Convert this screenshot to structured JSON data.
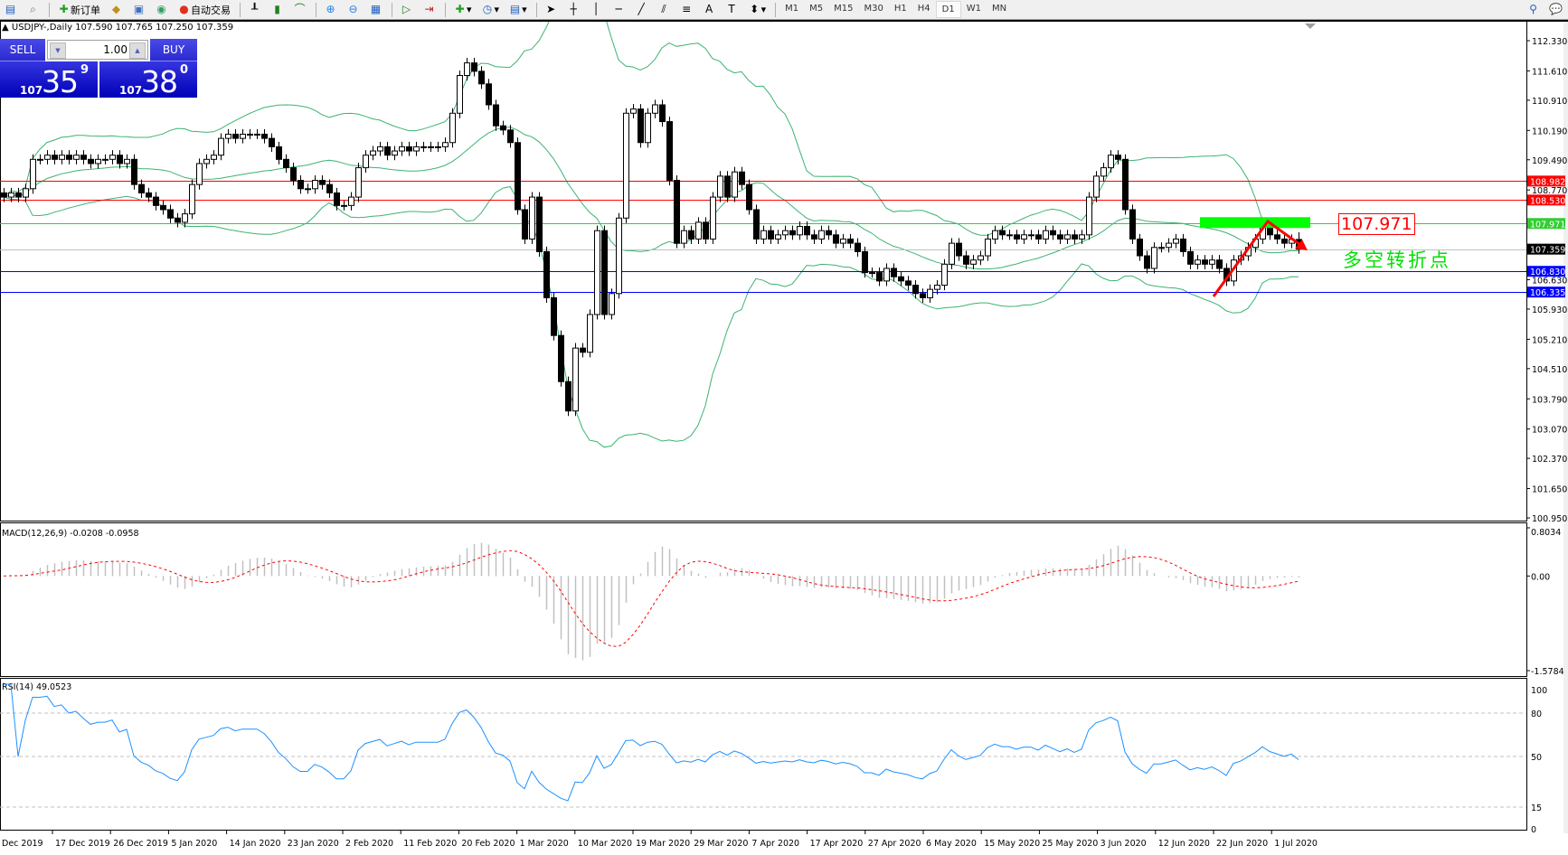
{
  "toolbar": {
    "new_order_label": "新订单",
    "auto_trading_label": "自动交易",
    "timeframes": [
      "M1",
      "M5",
      "M15",
      "M30",
      "H1",
      "H4",
      "D1",
      "W1",
      "MN"
    ],
    "active_timeframe": "D1",
    "tools": [
      "new-chart-icon",
      "zoom-icon",
      "new-order-icon",
      "metaeditor-icon",
      "navigator-icon",
      "signals-icon",
      "auto-trading-icon",
      "bar-chart-icon",
      "candlestick-icon",
      "line-chart-icon",
      "zoom-in-icon",
      "zoom-out-icon",
      "tile-windows-icon",
      "auto-scroll-icon",
      "chart-shift-icon",
      "indicators-icon",
      "periods-icon",
      "templates-icon",
      "cursor-icon",
      "crosshair-icon",
      "vertical-line-icon",
      "horizontal-line-icon",
      "trendline-icon",
      "equidistant-channel-icon",
      "fibonacci-icon",
      "text-icon",
      "text-label-icon",
      "arrows-icon",
      "search-icon",
      "chat-icon"
    ]
  },
  "chart": {
    "header": "USDJPY-,Daily  107.590 107.765 107.250 107.359",
    "one_click": {
      "sell_label": "SELL",
      "buy_label": "BUY",
      "lot": "1.00",
      "sell_big": "107",
      "sell_main": "35",
      "sell_sup": "9",
      "buy_big": "107",
      "buy_main": "38",
      "buy_sup": "0"
    },
    "annotation_value": "107.971",
    "annotation_text": "多空转折点"
  },
  "chart_data": [
    {
      "type": "candlestick",
      "symbol": "USDJPY-",
      "timeframe": "Daily",
      "last_bar": {
        "open": 107.59,
        "high": 107.765,
        "low": 107.25,
        "close": 107.359
      },
      "closes": [
        108.6,
        108.7,
        108.6,
        108.8,
        109.5,
        109.5,
        109.6,
        109.5,
        109.6,
        109.5,
        109.6,
        109.5,
        109.4,
        109.5,
        109.5,
        109.6,
        109.4,
        109.5,
        108.9,
        108.7,
        108.6,
        108.4,
        108.3,
        108.1,
        108.0,
        108.2,
        108.9,
        109.4,
        109.5,
        109.6,
        110.0,
        110.1,
        110.0,
        110.1,
        110.1,
        110.1,
        110.0,
        109.8,
        109.5,
        109.3,
        109.0,
        108.8,
        108.8,
        109.0,
        108.9,
        108.7,
        108.4,
        108.4,
        108.6,
        109.3,
        109.6,
        109.7,
        109.8,
        109.6,
        109.7,
        109.8,
        109.7,
        109.8,
        109.8,
        109.8,
        109.8,
        109.9,
        110.6,
        111.5,
        111.8,
        111.6,
        111.3,
        110.8,
        110.3,
        110.2,
        109.9,
        108.3,
        107.6,
        108.6,
        107.3,
        106.2,
        105.3,
        104.2,
        103.5,
        105.0,
        104.9,
        105.8,
        107.8,
        105.8,
        106.3,
        108.1,
        110.6,
        110.7,
        109.9,
        110.6,
        110.8,
        110.4,
        109.0,
        107.5,
        107.8,
        107.6,
        108.0,
        107.6,
        108.6,
        109.1,
        108.6,
        109.2,
        108.9,
        108.3,
        107.6,
        107.8,
        107.6,
        107.7,
        107.8,
        107.7,
        107.9,
        107.7,
        107.6,
        107.8,
        107.7,
        107.5,
        107.6,
        107.5,
        107.3,
        106.8,
        106.8,
        106.6,
        106.9,
        106.7,
        106.6,
        106.5,
        106.3,
        106.2,
        106.4,
        106.5,
        107.0,
        107.5,
        107.2,
        107.0,
        107.1,
        107.2,
        107.6,
        107.8,
        107.7,
        107.7,
        107.6,
        107.7,
        107.7,
        107.6,
        107.8,
        107.7,
        107.6,
        107.7,
        107.6,
        107.7,
        108.6,
        109.1,
        109.3,
        109.6,
        109.5,
        108.3,
        107.6,
        107.2,
        106.9,
        107.4,
        107.4,
        107.5,
        107.6,
        107.3,
        107.0,
        107.1,
        107.0,
        107.1,
        106.9,
        106.6,
        107.1,
        107.2,
        107.4,
        107.6,
        107.9,
        107.7,
        107.6,
        107.5,
        107.59,
        107.359
      ],
      "indicator_overlay": "Bollinger Bands",
      "price_ticks": [
        "112.330",
        "111.610",
        "110.910",
        "110.190",
        "109.490",
        "108.770",
        "106.630",
        "105.930",
        "105.210",
        "104.510",
        "103.790",
        "103.070",
        "102.370",
        "101.650",
        "100.950"
      ],
      "ylim": [
        100.95,
        112.33
      ],
      "levels": [
        {
          "value": "108.982",
          "color": "#ff0000"
        },
        {
          "value": "108.530",
          "color": "#ff0000"
        },
        {
          "value": "107.971",
          "color": "#32cd32"
        },
        {
          "value": "107.359",
          "color": "#000000",
          "line": "#c0c0c0"
        },
        {
          "value": "106.830",
          "color": "#0000ff"
        },
        {
          "value": "106.335",
          "color": "#0000ff"
        }
      ],
      "date_labels": [
        "Dec 2019",
        "17 Dec 2019",
        "26 Dec 2019",
        "5 Jan 2020",
        "14 Jan 2020",
        "23 Jan 2020",
        "2 Feb 2020",
        "11 Feb 2020",
        "20 Feb 2020",
        "1 Mar 2020",
        "10 Mar 2020",
        "19 Mar 2020",
        "29 Mar 2020",
        "7 Apr 2020",
        "17 Apr 2020",
        "27 Apr 2020",
        "6 May 2020",
        "15 May 2020",
        "25 May 2020",
        "3 Jun 2020",
        "12 Jun 2020",
        "22 Jun 2020",
        "1 Jul 2020"
      ]
    },
    {
      "type": "macd",
      "label": "MACD(12,26,9) -0.0208 -0.0958",
      "ticks": [
        "0.8034",
        "0.00",
        "-1.5784"
      ],
      "ylim": [
        -1.5784,
        0.8034
      ],
      "histogram_color": "#c0c0c0",
      "signal_color": "#ff0000"
    },
    {
      "type": "rsi",
      "label": "RSI(14) 49.0523",
      "ticks": [
        "100",
        "80",
        "50",
        "15",
        "0"
      ],
      "levels": [
        80,
        50,
        15
      ],
      "ylim": [
        0,
        100
      ],
      "line_color": "#1e90ff"
    }
  ]
}
